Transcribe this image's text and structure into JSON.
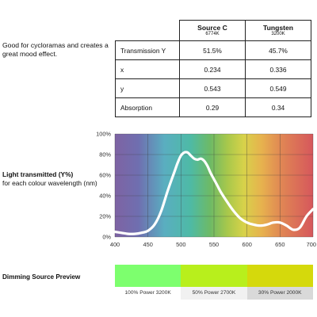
{
  "description": "Good for cycloramas and creates a great mood effect.",
  "table": {
    "sources": [
      {
        "name": "Source C",
        "temp": "6774K"
      },
      {
        "name": "Tungsten",
        "temp": "3200K"
      }
    ],
    "rows": [
      {
        "label": "Transmission Y",
        "values": [
          "51.5%",
          "45.7%"
        ]
      },
      {
        "label": "x",
        "values": [
          "0.234",
          "0.336"
        ]
      },
      {
        "label": "y",
        "values": [
          "0.543",
          "0.549"
        ]
      },
      {
        "label": "Absorption",
        "values": [
          "0.29",
          "0.34"
        ]
      }
    ]
  },
  "chart_data": {
    "type": "line",
    "title": "Light transmitted (Y%)",
    "subtitle": "for each colour wavelength (nm)",
    "xlim": [
      400,
      700
    ],
    "ylim": [
      0,
      100
    ],
    "x_ticks": [
      "400",
      "450",
      "500",
      "550",
      "600",
      "650",
      "700"
    ],
    "y_ticks": [
      "0%",
      "20%",
      "40%",
      "60%",
      "80%",
      "100%"
    ],
    "grid": true,
    "series": [
      {
        "x": [
          400,
          410,
          420,
          430,
          440,
          450,
          460,
          470,
          480,
          490,
          495,
          500,
          505,
          510,
          515,
          520,
          525,
          530,
          535,
          540,
          545,
          550,
          555,
          560,
          570,
          580,
          590,
          600,
          610,
          620,
          630,
          640,
          650,
          660,
          670,
          680,
          690,
          700
        ],
        "values": [
          5,
          4,
          3,
          3,
          4,
          6,
          12,
          25,
          45,
          63,
          72,
          79,
          82,
          82,
          79,
          76,
          75,
          76,
          74,
          69,
          62,
          56,
          50,
          44,
          34,
          25,
          18,
          14,
          12,
          11,
          12,
          14,
          14,
          11,
          7,
          9,
          20,
          27
        ]
      }
    ]
  },
  "dimming": {
    "title": "Dimming Source Preview",
    "swatches": [
      {
        "label": "100% Power 3200K",
        "color": "#7dff6e",
        "caption_bg": "#ffffff"
      },
      {
        "label": "50% Power 2700K",
        "color": "#b8ef1c",
        "caption_bg": "#f1f1f1"
      },
      {
        "label": "30% Power 2000K",
        "color": "#d5d90c",
        "caption_bg": "#d9d9d9"
      }
    ]
  }
}
